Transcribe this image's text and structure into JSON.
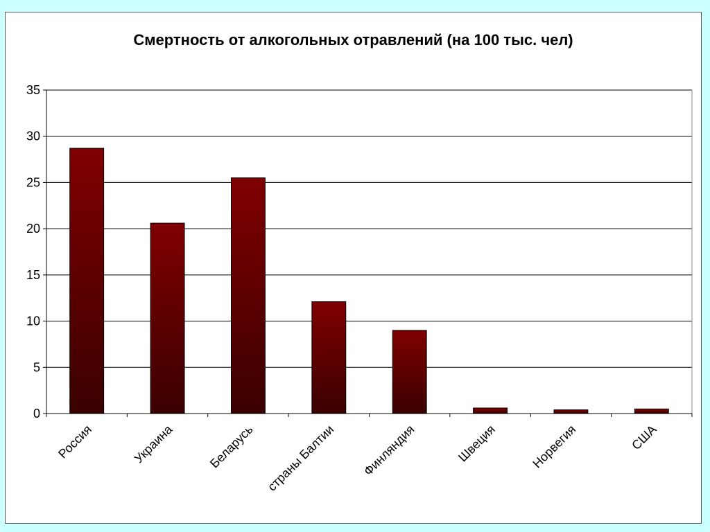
{
  "chart_data": {
    "type": "bar",
    "title": "Смертность от алкогольных отравлений (на 100 тыс. чел)",
    "categories": [
      "Россия",
      "Украина",
      "Беларусь",
      "страны Балтии",
      "Финляндия",
      "Швеция",
      "Норвегия",
      "США"
    ],
    "values": [
      28.7,
      20.6,
      25.5,
      12.1,
      9.0,
      0.6,
      0.4,
      0.5
    ],
    "ylim": [
      0,
      35
    ],
    "yticks": [
      0,
      5,
      10,
      15,
      20,
      25,
      30,
      35
    ],
    "grid": true,
    "legend": "none",
    "colors": {
      "bar_top": "#800000",
      "bar_bottom": "#3a0000",
      "background": "#ccffff",
      "gridline": "#000000"
    }
  }
}
